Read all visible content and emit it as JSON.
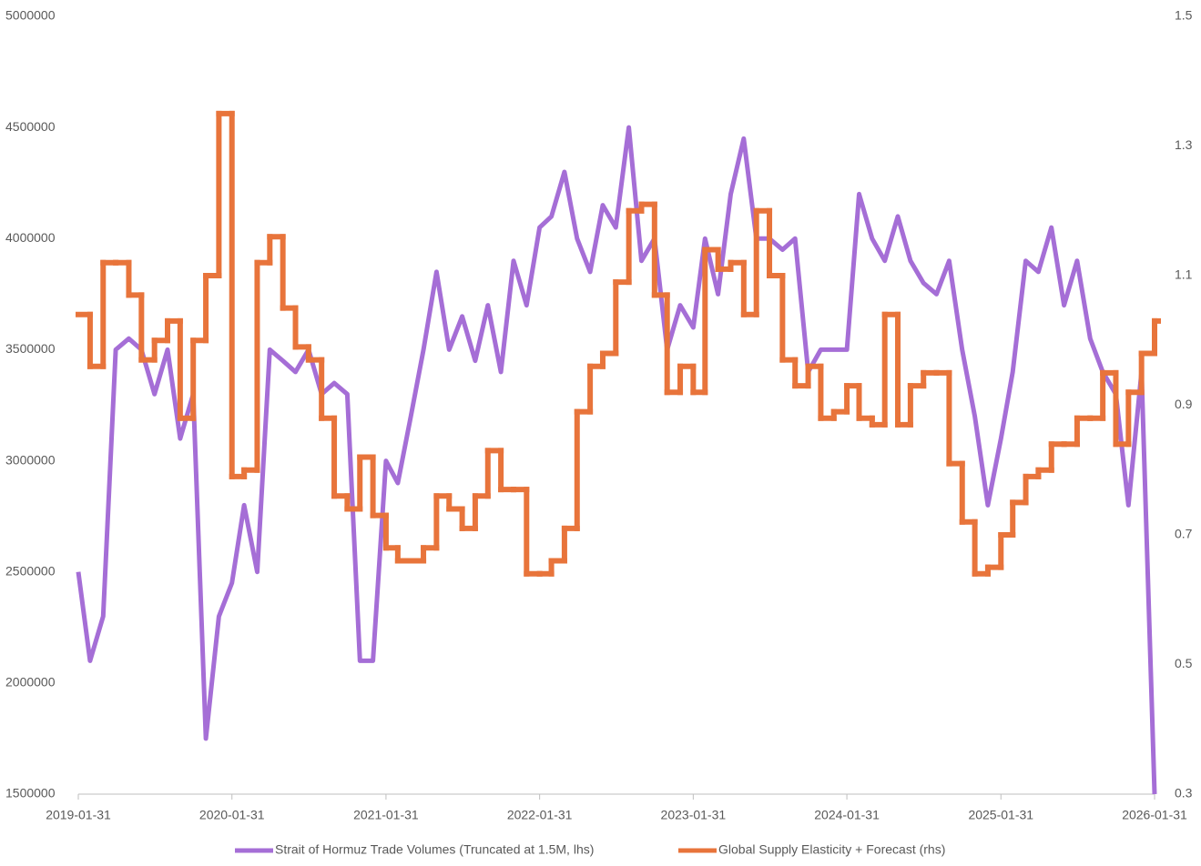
{
  "chart_data": {
    "type": "line",
    "x": [
      "2019-01-31",
      "2019-02-28",
      "2019-03-31",
      "2019-04-30",
      "2019-05-31",
      "2019-06-30",
      "2019-07-31",
      "2019-08-31",
      "2019-09-30",
      "2019-10-31",
      "2019-11-30",
      "2019-12-31",
      "2020-01-31",
      "2020-02-29",
      "2020-03-31",
      "2020-04-30",
      "2020-05-31",
      "2020-06-30",
      "2020-07-31",
      "2020-08-31",
      "2020-09-30",
      "2020-10-31",
      "2020-11-30",
      "2020-12-31",
      "2021-01-31",
      "2021-02-28",
      "2021-03-31",
      "2021-04-30",
      "2021-05-31",
      "2021-06-30",
      "2021-07-31",
      "2021-08-31",
      "2021-09-30",
      "2021-10-31",
      "2021-11-30",
      "2021-12-31",
      "2022-01-31",
      "2022-02-28",
      "2022-03-31",
      "2022-04-30",
      "2022-05-31",
      "2022-06-30",
      "2022-07-31",
      "2022-08-31",
      "2022-09-30",
      "2022-10-31",
      "2022-11-30",
      "2022-12-31",
      "2023-01-31",
      "2023-02-28",
      "2023-03-31",
      "2023-04-30",
      "2023-05-31",
      "2023-06-30",
      "2023-07-31",
      "2023-08-31",
      "2023-09-30",
      "2023-10-31",
      "2023-11-30",
      "2023-12-31",
      "2024-01-31",
      "2024-02-29",
      "2024-03-31",
      "2024-04-30",
      "2024-05-31",
      "2024-06-30",
      "2024-07-31",
      "2024-08-31",
      "2024-09-30",
      "2024-10-31",
      "2024-11-30",
      "2024-12-31",
      "2025-01-31",
      "2025-02-28",
      "2025-03-31",
      "2025-04-30",
      "2025-05-31",
      "2025-06-30",
      "2025-07-31",
      "2025-08-31",
      "2025-09-30",
      "2025-10-31",
      "2025-11-30",
      "2025-12-31",
      "2026-01-31"
    ],
    "series": [
      {
        "name": "Strait of Hormuz Trade Volumes (Truncated at 1.5M, lhs)",
        "color": "#a56ed6",
        "axis": "y",
        "values": [
          2500000,
          2100000,
          2300000,
          3500000,
          3550000,
          3500000,
          3300000,
          3500000,
          3100000,
          3300000,
          1750000,
          2300000,
          2450000,
          2800000,
          2500000,
          3500000,
          3450000,
          3400000,
          3500000,
          3300000,
          3350000,
          3300000,
          2100000,
          2100000,
          3000000,
          2900000,
          3200000,
          3500000,
          3850000,
          3500000,
          3650000,
          3450000,
          3700000,
          3400000,
          3900000,
          3700000,
          4050000,
          4100000,
          4300000,
          4000000,
          3850000,
          4150000,
          4050000,
          4500000,
          3900000,
          4000000,
          3500000,
          3700000,
          3600000,
          4000000,
          3750000,
          4200000,
          4450000,
          4000000,
          4000000,
          3950000,
          4000000,
          3400000,
          3500000,
          3500000,
          3500000,
          4200000,
          4000000,
          3900000,
          4100000,
          3900000,
          3800000,
          3750000,
          3900000,
          3500000,
          3200000,
          2800000,
          3100000,
          3400000,
          3900000,
          3850000,
          4050000,
          3700000,
          3900000,
          3550000,
          3400000,
          3300000,
          2800000,
          3400000,
          1500000
        ]
      },
      {
        "name": "Global Supply Elasticity + Forecast (rhs)",
        "color": "#e8743b",
        "axis": "y2",
        "step": true,
        "values": [
          1.04,
          0.96,
          1.12,
          1.12,
          1.07,
          0.97,
          1.0,
          1.03,
          0.88,
          1.0,
          1.1,
          1.35,
          0.79,
          0.8,
          1.12,
          1.16,
          1.05,
          0.99,
          0.97,
          0.88,
          0.76,
          0.74,
          0.82,
          0.73,
          0.68,
          0.66,
          0.66,
          0.68,
          0.76,
          0.74,
          0.71,
          0.76,
          0.83,
          0.77,
          0.77,
          0.64,
          0.64,
          0.66,
          0.71,
          0.89,
          0.96,
          0.98,
          1.09,
          1.2,
          1.21,
          1.07,
          0.92,
          0.96,
          0.92,
          1.14,
          1.11,
          1.12,
          1.04,
          1.2,
          1.1,
          0.97,
          0.93,
          0.96,
          0.88,
          0.89,
          0.93,
          0.88,
          0.87,
          1.04,
          0.87,
          0.93,
          0.95,
          0.95,
          0.81,
          0.72,
          0.64,
          0.65,
          0.7,
          0.75,
          0.79,
          0.8,
          0.84,
          0.84,
          0.88,
          0.88,
          0.95,
          0.84,
          0.92,
          0.98,
          1.03
        ]
      }
    ],
    "xlim": [
      "2019-01-31",
      "2026-01-31"
    ],
    "xticks": [
      "2019-01-31",
      "2020-01-31",
      "2021-01-31",
      "2022-01-31",
      "2023-01-31",
      "2024-01-31",
      "2025-01-31",
      "2026-01-31"
    ],
    "ylim": [
      1500000,
      5000000
    ],
    "yticks": [
      1500000,
      2000000,
      2500000,
      3000000,
      3500000,
      4000000,
      4500000,
      5000000
    ],
    "y2lim": [
      0.3,
      1.5
    ],
    "y2ticks": [
      0.3,
      0.5,
      0.7,
      0.9,
      1.1,
      1.3,
      1.5
    ],
    "grid": false,
    "legend": "bottom"
  }
}
